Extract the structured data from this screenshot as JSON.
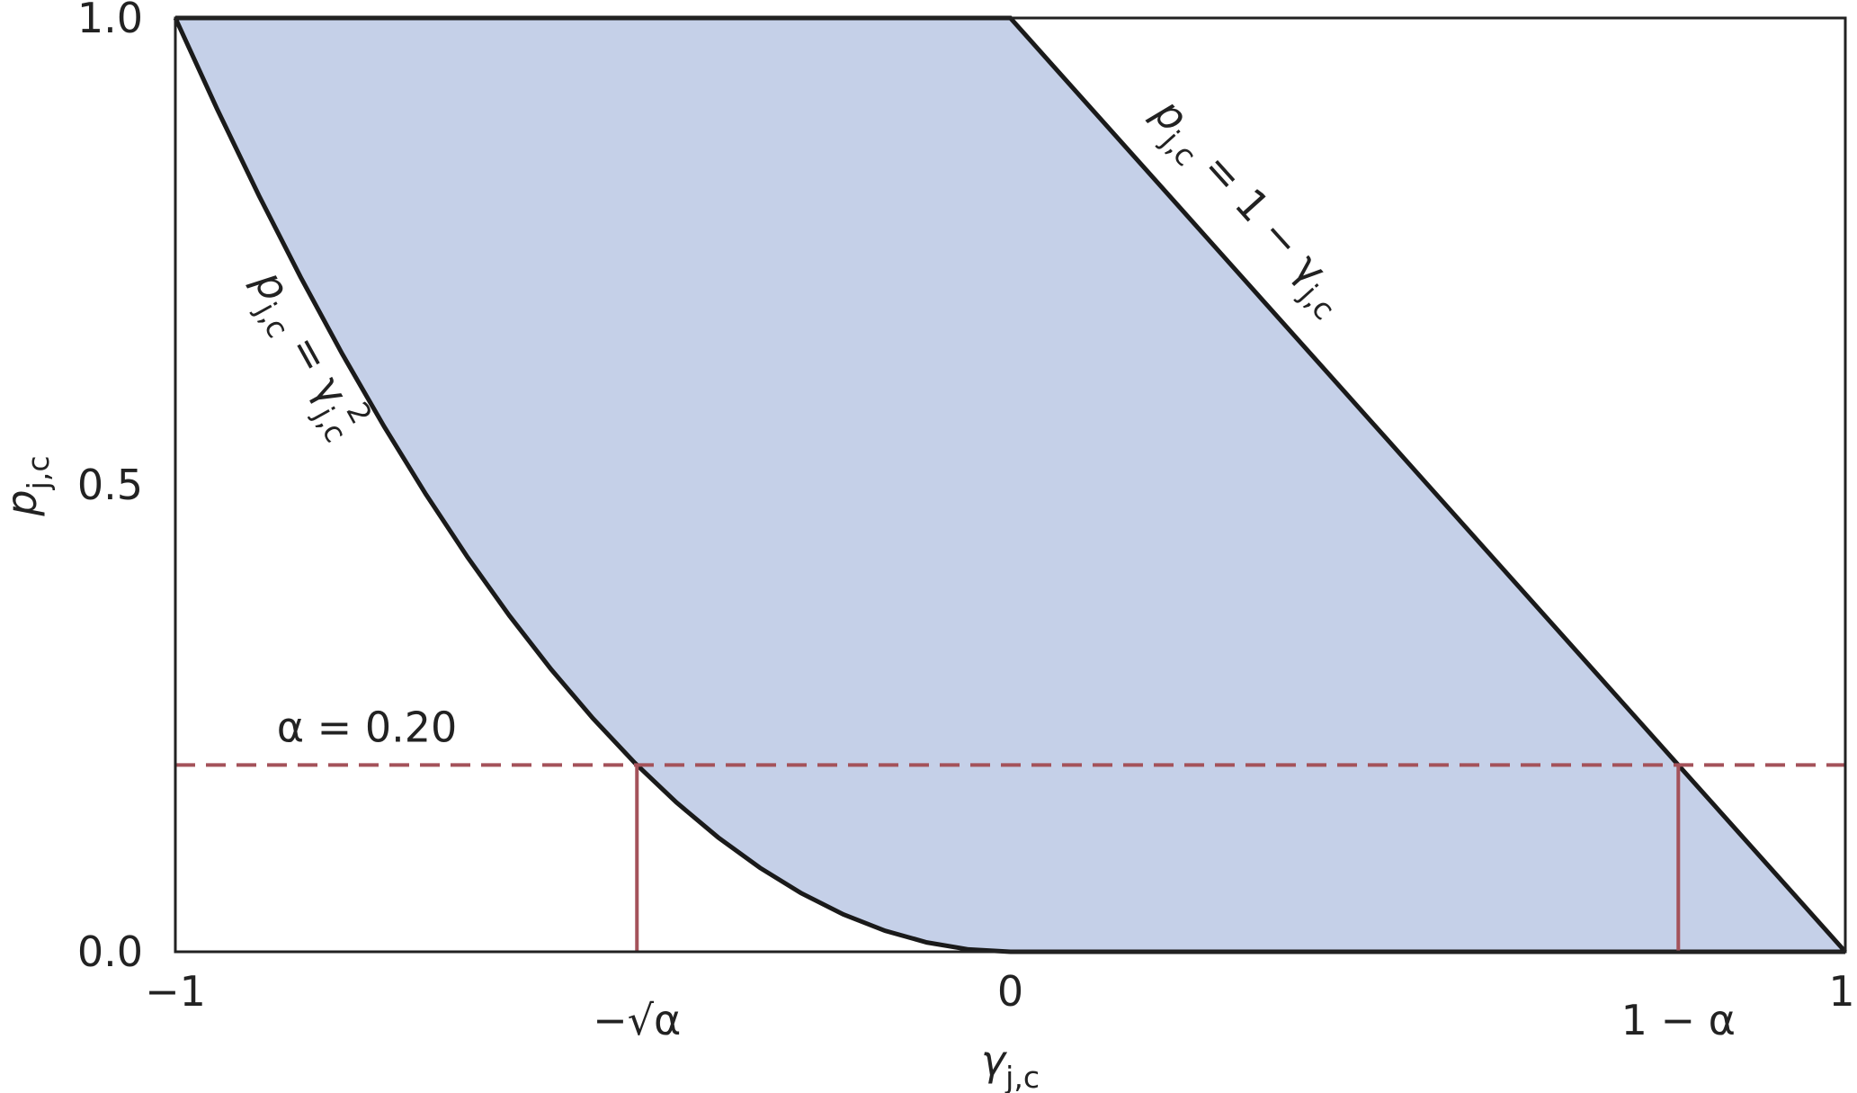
{
  "chart_data": {
    "type": "band",
    "xlabel": [
      {
        "text": "γ"
      },
      {
        "text": "j,c",
        "sub": true
      }
    ],
    "ylabel": [
      {
        "text": "p"
      },
      {
        "text": "j,c",
        "sub": true
      }
    ],
    "fill": "#c5d0e8",
    "x": [
      -1,
      -0.95,
      -0.9,
      -0.85,
      -0.8,
      -0.75,
      -0.7,
      -0.65,
      -0.6,
      -0.55,
      -0.5,
      -0.45,
      -0.4,
      -0.35,
      -0.3,
      -0.25,
      -0.2,
      -0.15,
      -0.1,
      -0.05,
      0,
      0.05,
      0.1,
      0.15,
      0.2,
      0.25,
      0.3,
      0.35,
      0.4,
      0.45,
      0.5,
      0.55,
      0.6,
      0.65,
      0.7,
      0.75,
      0.8,
      0.85,
      0.9,
      0.95,
      1
    ],
    "series": [
      {
        "label": [
          {
            "text": "p"
          },
          {
            "text": "j,c",
            "sub": true
          },
          {
            "text": " = γ"
          },
          {
            "text": "j,c",
            "sub": true
          },
          {
            "text": "2",
            "sup": true
          }
        ],
        "color": "#1a1a1a",
        "values": [
          1,
          0.9025,
          0.81,
          0.7225,
          0.64,
          0.5625,
          0.49,
          0.4225,
          0.36,
          0.3025,
          0.25,
          0.2025,
          0.16,
          0.1225,
          0.09,
          0.0625,
          0.04,
          0.0225,
          0.01,
          0.0025,
          0,
          0,
          0,
          0,
          0,
          0,
          0,
          0,
          0,
          0,
          0,
          0,
          0,
          0,
          0,
          0,
          0,
          0,
          0,
          0,
          0
        ]
      },
      {
        "label": [
          {
            "text": "p"
          },
          {
            "text": "j,c",
            "sub": true
          },
          {
            "text": " = 1 − γ"
          },
          {
            "text": "j,c",
            "sub": true
          }
        ],
        "color": "#1a1a1a",
        "values": [
          1,
          1,
          1,
          1,
          1,
          1,
          1,
          1,
          1,
          1,
          1,
          1,
          1,
          1,
          1,
          1,
          1,
          1,
          1,
          1,
          1,
          0.95,
          0.9,
          0.85,
          0.8,
          0.75,
          0.7,
          0.65,
          0.6,
          0.55,
          0.5,
          0.45,
          0.4,
          0.35,
          0.3,
          0.25,
          0.2,
          0.15,
          0.1,
          0.05,
          0
        ]
      }
    ],
    "hline": {
      "y": 0.2,
      "label": "α = 0.20",
      "color": "#a4525a"
    },
    "vlines": [
      {
        "x": -0.4472,
        "label": "−√α"
      },
      {
        "x": 0.8,
        "label": "1 − α"
      }
    ],
    "xlim": [
      -1,
      1
    ],
    "ylim": [
      0,
      1
    ],
    "xticks": [
      {
        "value": -1,
        "label": "−1"
      },
      0,
      1
    ],
    "yticks": [
      {
        "value": 0,
        "label": "0.0"
      },
      0.5,
      {
        "value": 1,
        "label": "1.0"
      }
    ]
  }
}
